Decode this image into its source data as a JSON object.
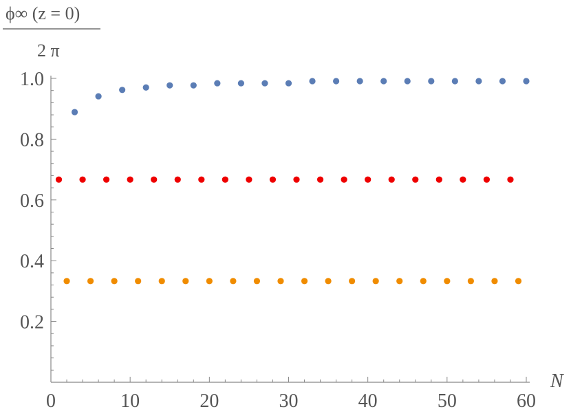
{
  "chart_data": {
    "type": "scatter",
    "ylabel": {
      "numerator": "ϕ∞ (z = 0)",
      "denominator": "2 π"
    },
    "xlabel": "N",
    "xlim": [
      0,
      60
    ],
    "ylim": [
      0,
      1.0
    ],
    "x_ticks": [
      "0",
      "10",
      "20",
      "30",
      "40",
      "50",
      "60"
    ],
    "y_ticks": [
      "0.2",
      "0.4",
      "0.6",
      "0.8",
      "1.0"
    ],
    "grid": false,
    "series": [
      {
        "color": "#5b7db5",
        "x": [
          3,
          6,
          9,
          12,
          15,
          18,
          21,
          24,
          27,
          30,
          33,
          36,
          39,
          42,
          45,
          48,
          51,
          54,
          57,
          60
        ],
        "y": [
          0.889,
          0.941,
          0.962,
          0.97,
          0.977,
          0.977,
          0.984,
          0.984,
          0.984,
          0.984,
          0.991,
          0.991,
          0.991,
          0.991,
          0.991,
          0.991,
          0.991,
          0.991,
          0.991,
          0.991
        ]
      },
      {
        "color": "#ee0000",
        "x": [
          1,
          4,
          7,
          10,
          13,
          16,
          19,
          22,
          25,
          28,
          31,
          34,
          37,
          40,
          43,
          46,
          49,
          52,
          55,
          58
        ],
        "y": [
          0.667,
          0.667,
          0.667,
          0.667,
          0.667,
          0.667,
          0.667,
          0.667,
          0.667,
          0.667,
          0.667,
          0.667,
          0.667,
          0.667,
          0.667,
          0.667,
          0.667,
          0.667,
          0.667,
          0.667
        ]
      },
      {
        "color": "#f08c00",
        "x": [
          2,
          5,
          8,
          11,
          14,
          17,
          20,
          23,
          26,
          29,
          32,
          35,
          38,
          41,
          44,
          47,
          50,
          53,
          56,
          59
        ],
        "y": [
          0.333,
          0.333,
          0.333,
          0.333,
          0.333,
          0.333,
          0.333,
          0.333,
          0.333,
          0.333,
          0.333,
          0.333,
          0.333,
          0.333,
          0.333,
          0.333,
          0.333,
          0.333,
          0.333,
          0.333
        ]
      }
    ]
  }
}
